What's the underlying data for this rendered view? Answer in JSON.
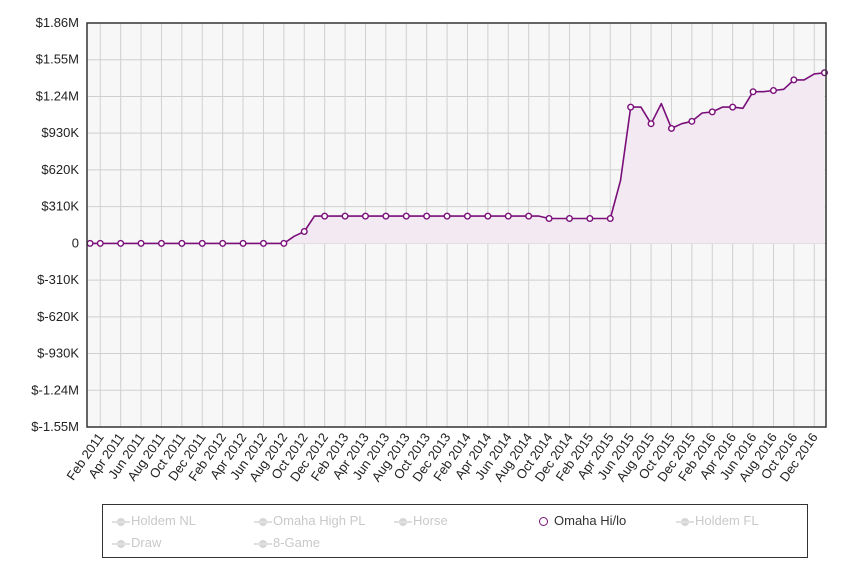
{
  "chart_data": {
    "type": "line",
    "title": "",
    "xlabel": "",
    "ylabel": "",
    "ylim": [
      -1550000,
      1860000
    ],
    "y_ticks": [
      "$1.86M",
      "$1.55M",
      "$1.24M",
      "$930K",
      "$620K",
      "$310K",
      "0",
      "$-310K",
      "$-620K",
      "$-930K",
      "$-1.24M",
      "$-1.55M"
    ],
    "x_ticks": [
      "Feb 2011",
      "Apr 2011",
      "Jun 2011",
      "Aug 2011",
      "Oct 2011",
      "Dec 2011",
      "Feb 2012",
      "Apr 2012",
      "Jun 2012",
      "Aug 2012",
      "Oct 2012",
      "Dec 2012",
      "Feb 2013",
      "Apr 2013",
      "Jun 2013",
      "Aug 2013",
      "Oct 2013",
      "Dec 2013",
      "Feb 2014",
      "Apr 2014",
      "Jun 2014",
      "Aug 2014",
      "Oct 2014",
      "Dec 2014",
      "Feb 2015",
      "Apr 2015",
      "Jun 2015",
      "Aug 2015",
      "Oct 2015",
      "Dec 2015",
      "Feb 2016",
      "Apr 2016",
      "Jun 2016",
      "Aug 2016",
      "Oct 2016",
      "Dec 2016"
    ],
    "grid": true,
    "legend_position": "bottom",
    "series": [
      {
        "name": "Omaha Hi/lo",
        "color": "#7a0f7a",
        "x": [
          "Jan 2011",
          "Feb 2011",
          "Apr 2011",
          "Jun 2011",
          "Aug 2011",
          "Oct 2011",
          "Dec 2011",
          "Feb 2012",
          "Apr 2012",
          "Jun 2012",
          "Aug 2012",
          "Sep 2012",
          "Oct 2012",
          "Nov 2012",
          "Dec 2012",
          "Feb 2013",
          "Apr 2013",
          "Jun 2013",
          "Aug 2013",
          "Oct 2013",
          "Dec 2013",
          "Feb 2014",
          "Apr 2014",
          "Jun 2014",
          "Aug 2014",
          "Sep 2014",
          "Oct 2014",
          "Dec 2014",
          "Feb 2015",
          "Apr 2015",
          "May 2015",
          "Jun 2015",
          "Jul 2015",
          "Aug 2015",
          "Sep 2015",
          "Oct 2015",
          "Nov 2015",
          "Dec 2015",
          "Jan 2016",
          "Feb 2016",
          "Mar 2016",
          "Apr 2016",
          "May 2016",
          "Jun 2016",
          "Jul 2016",
          "Aug 2016",
          "Sep 2016",
          "Oct 2016",
          "Nov 2016",
          "Dec 2016",
          "Jan 2017"
        ],
        "values": [
          0,
          0,
          0,
          0,
          0,
          0,
          0,
          0,
          0,
          0,
          0,
          60000,
          100000,
          230000,
          230000,
          230000,
          230000,
          230000,
          230000,
          230000,
          230000,
          230000,
          230000,
          230000,
          230000,
          230000,
          210000,
          210000,
          210000,
          210000,
          530000,
          1150000,
          1150000,
          1010000,
          1180000,
          970000,
          1010000,
          1030000,
          1100000,
          1110000,
          1150000,
          1150000,
          1140000,
          1280000,
          1280000,
          1290000,
          1300000,
          1380000,
          1380000,
          1430000,
          1440000
        ],
        "markers": [
          true,
          true,
          true,
          true,
          true,
          true,
          true,
          true,
          true,
          true,
          true,
          false,
          true,
          false,
          true,
          true,
          true,
          true,
          true,
          true,
          true,
          true,
          true,
          true,
          true,
          false,
          true,
          true,
          true,
          true,
          false,
          true,
          false,
          true,
          false,
          true,
          false,
          true,
          false,
          true,
          false,
          true,
          false,
          true,
          false,
          true,
          false,
          true,
          false,
          false,
          true
        ]
      }
    ]
  },
  "legend": {
    "items": [
      {
        "label": "Holdem NL",
        "active": false
      },
      {
        "label": "Omaha High PL",
        "active": false
      },
      {
        "label": "Horse",
        "active": false
      },
      {
        "label": "Omaha Hi/lo",
        "active": true
      },
      {
        "label": "Holdem FL",
        "active": false
      },
      {
        "label": "Draw",
        "active": false
      },
      {
        "label": "8-Game",
        "active": false
      }
    ]
  },
  "colors": {
    "plot_background": "#f7f7f7",
    "grid": "#d0d0d0",
    "series": "#7a0f7a",
    "area_fill": "#f3e9f3"
  }
}
